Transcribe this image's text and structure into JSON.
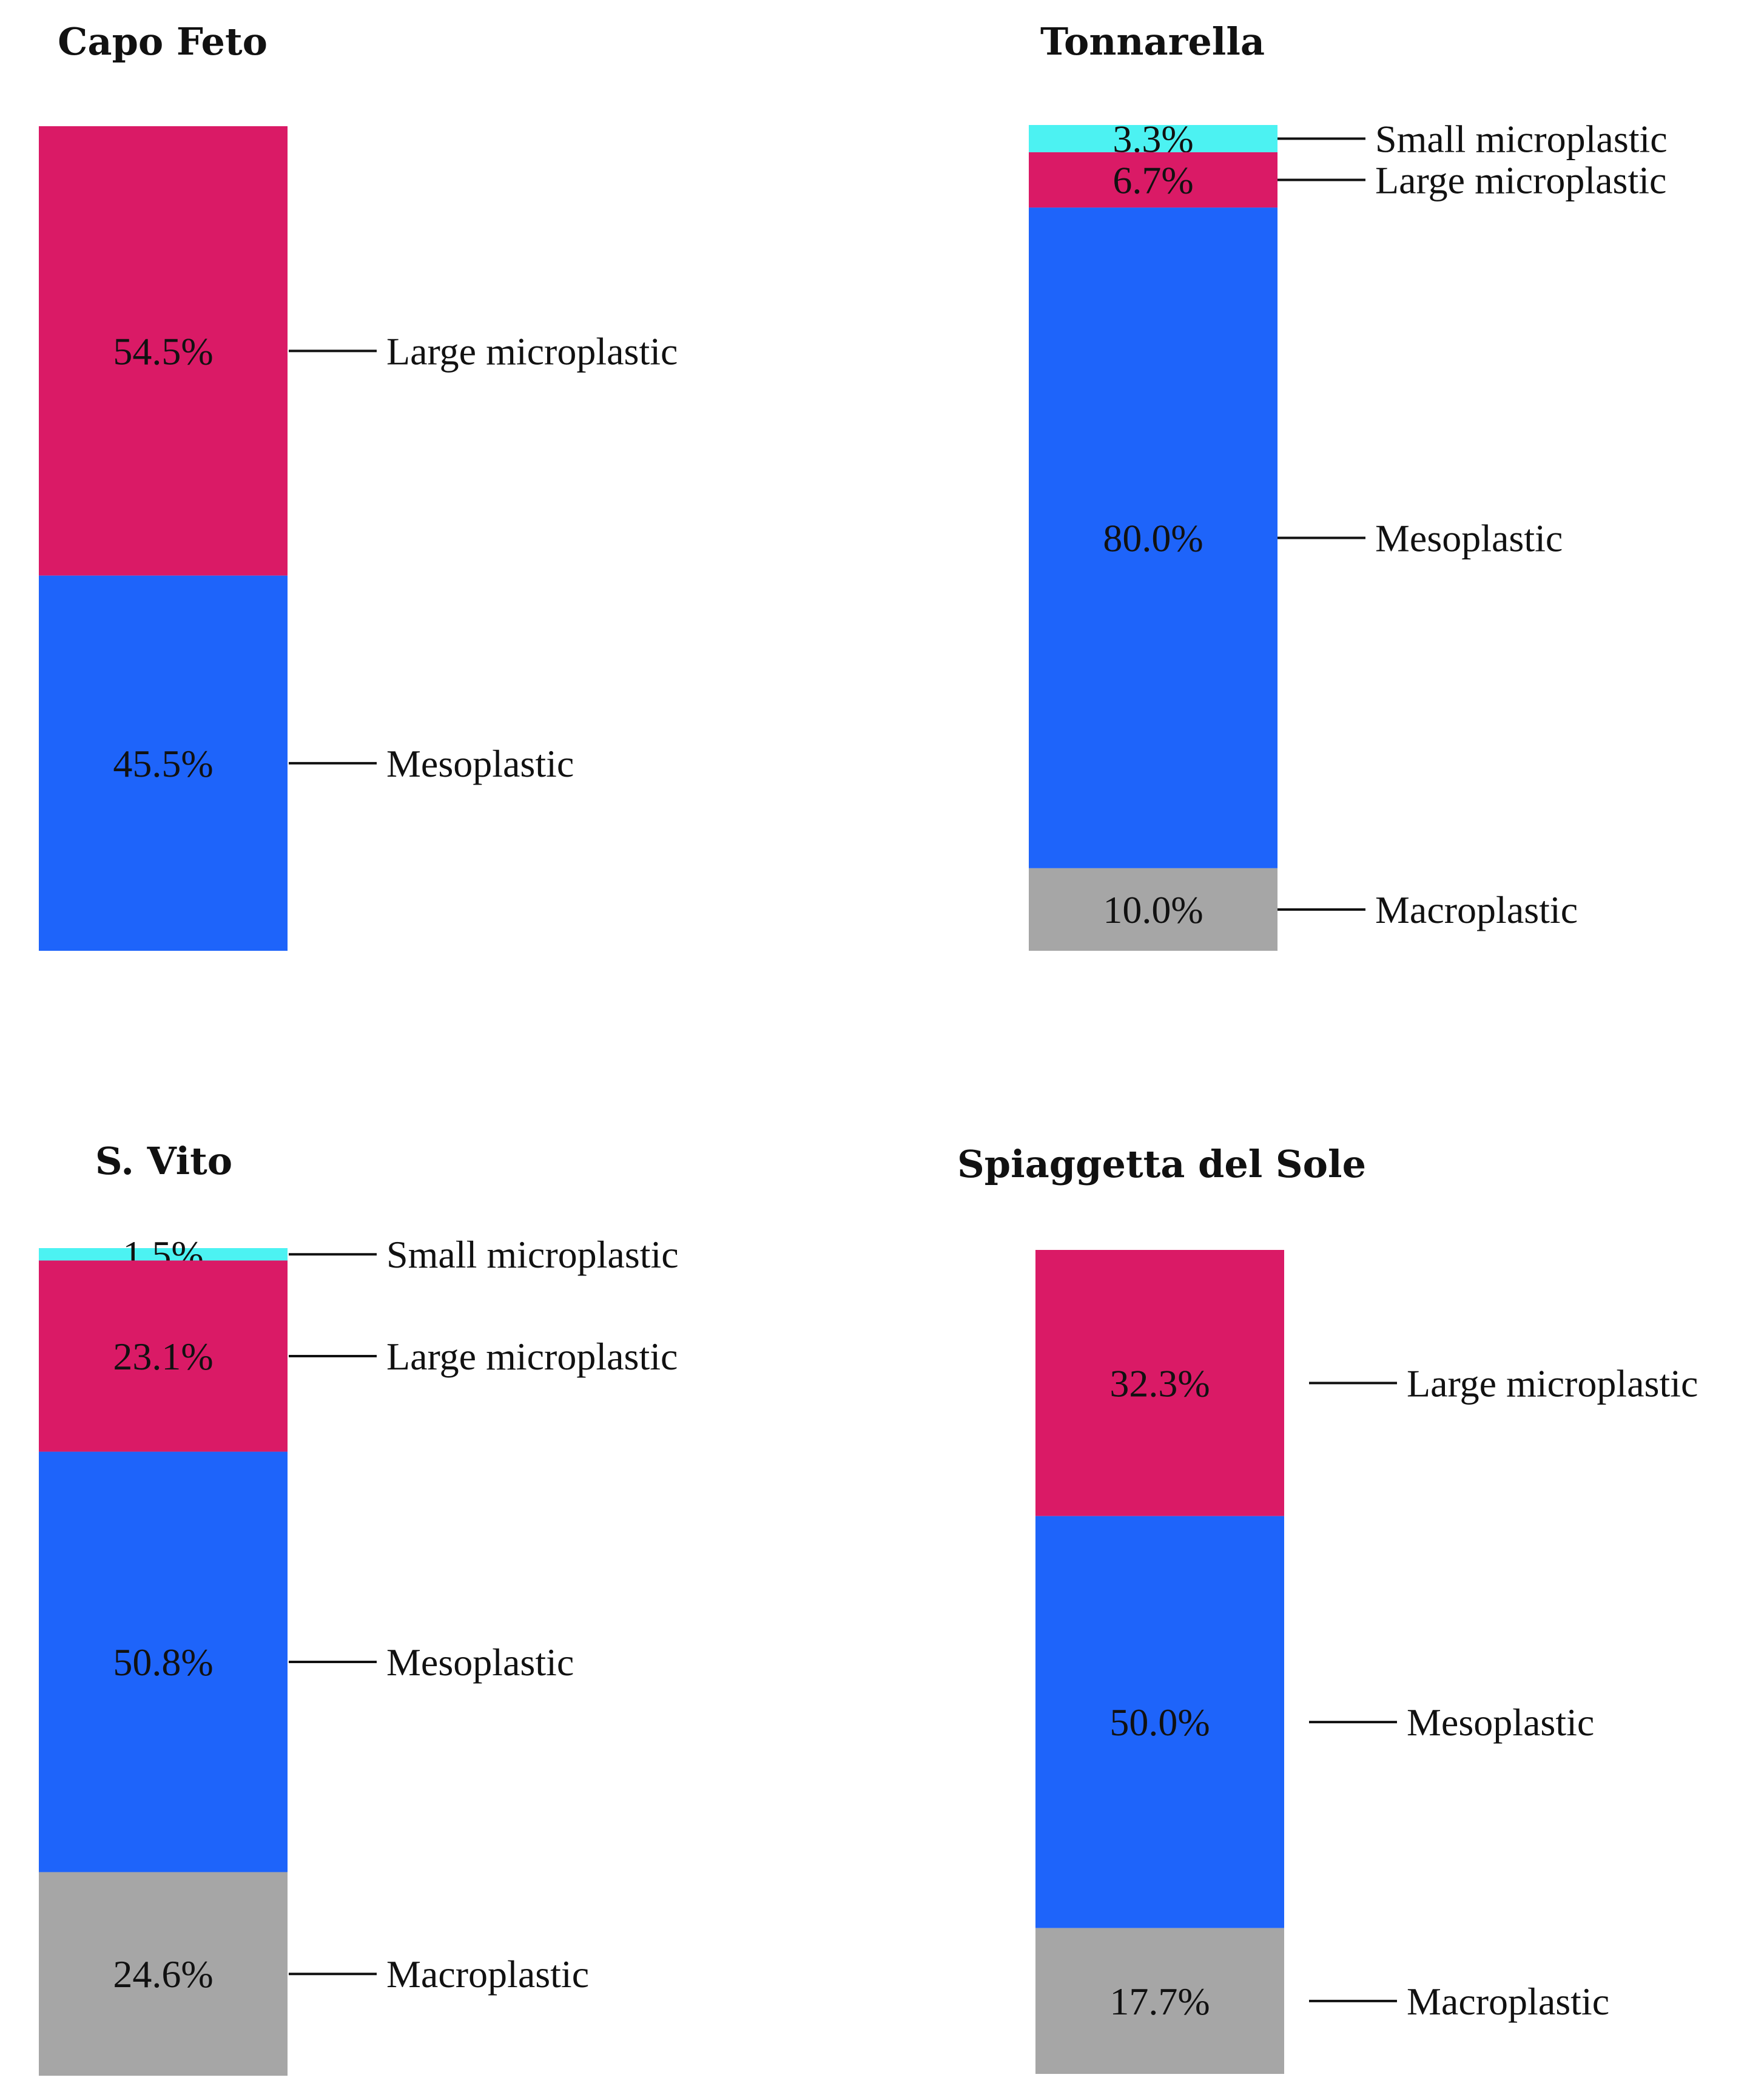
{
  "chart_data": [
    {
      "type": "bar",
      "subtype": "stacked-100-percent",
      "title": "Capo Feto",
      "segments": [
        {
          "category": "Large microplastic",
          "label": "54.5%",
          "value": 54.5,
          "color": "#DA1A66"
        },
        {
          "category": "Mesoplastic",
          "label": "45.5%",
          "value": 45.5,
          "color": "#1E64FA"
        }
      ]
    },
    {
      "type": "bar",
      "subtype": "stacked-100-percent",
      "title": "Tonnarella",
      "segments": [
        {
          "category": "Small microplastic",
          "label": "3.3%",
          "value": 3.3,
          "color": "#4CF2F2"
        },
        {
          "category": "Large microplastic",
          "label": "6.7%",
          "value": 6.7,
          "color": "#DA1A66"
        },
        {
          "category": "Mesoplastic",
          "label": "80.0%",
          "value": 80.0,
          "color": "#1E64FA"
        },
        {
          "category": "Macroplastic",
          "label": "10.0%",
          "value": 10.0,
          "color": "#A6A6A6"
        }
      ]
    },
    {
      "type": "bar",
      "subtype": "stacked-100-percent",
      "title": "S. Vito",
      "segments": [
        {
          "category": "Small microplastic",
          "label": "1.5%",
          "value": 1.5,
          "color": "#4CF2F2"
        },
        {
          "category": "Large microplastic",
          "label": "23.1%",
          "value": 23.1,
          "color": "#DA1A66"
        },
        {
          "category": "Mesoplastic",
          "label": "50.8%",
          "value": 50.8,
          "color": "#1E64FA"
        },
        {
          "category": "Macroplastic",
          "label": "24.6%",
          "value": 24.6,
          "color": "#A6A6A6"
        }
      ]
    },
    {
      "type": "bar",
      "subtype": "stacked-100-percent",
      "title": "Spiaggetta del Sole",
      "segments": [
        {
          "category": "Large microplastic",
          "label": "32.3%",
          "value": 32.3,
          "color": "#DA1A66"
        },
        {
          "category": "Mesoplastic",
          "label": "50.0%",
          "value": 50.0,
          "color": "#1E64FA"
        },
        {
          "category": "Macroplastic",
          "label": "17.7%",
          "value": 17.7,
          "color": "#A6A6A6"
        }
      ]
    }
  ]
}
